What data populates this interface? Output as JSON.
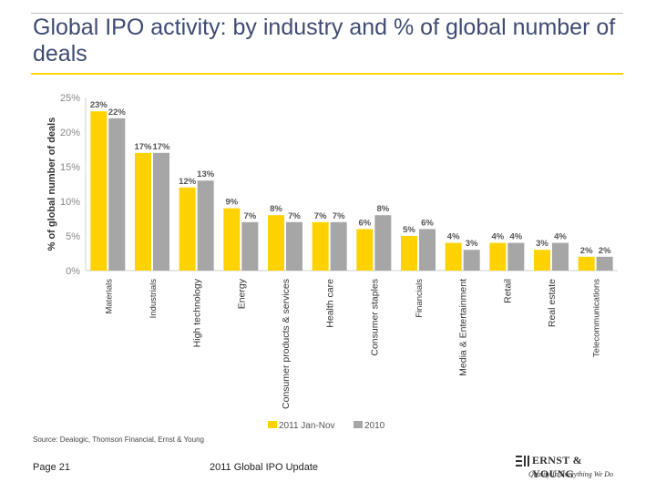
{
  "title": "Global IPO activity: by industry and % of global number of deals",
  "source": "Source: Dealogic, Thomson Financial, Ernst & Young",
  "footer": {
    "page": "Page 21",
    "center": "2011 Global IPO Update"
  },
  "logo": {
    "brand": "ERNST & YOUNG",
    "tagline": "Quality In Everything We Do"
  },
  "colors": {
    "series_2011": "#ffd200",
    "series_2010": "#a6a6a6",
    "title": "#404b73",
    "rule": "#ffd200"
  },
  "chart_data": {
    "type": "bar",
    "categories": [
      "Materials",
      "Industrials",
      "High technology",
      "Energy",
      "Consumer products & services",
      "Health care",
      "Consumer staples",
      "Financials",
      "Media & Entertainment",
      "Retail",
      "Real estate",
      "Telecommunications"
    ],
    "bold_categories": [
      "High technology",
      "Energy",
      "Consumer products & services",
      "Health care",
      "Consumer staples",
      "Media & Entertainment",
      "Retail",
      "Real estate"
    ],
    "series": [
      {
        "name": "2011 Jan-Nov",
        "values": [
          23,
          17,
          12,
          9,
          8,
          7,
          6,
          5,
          4,
          4,
          3,
          2
        ],
        "labels": [
          "23%",
          "17%",
          "12%",
          "9%",
          "8%",
          "7%",
          "6%",
          "5%",
          "4%",
          "4%",
          "3%",
          "2%"
        ]
      },
      {
        "name": "2010",
        "values": [
          22,
          17,
          13,
          7,
          7,
          7,
          8,
          6,
          3,
          4,
          4,
          2
        ],
        "labels": [
          "22%",
          "17%",
          "13%",
          "7%",
          "7%",
          "7%",
          "8%",
          "6%",
          "3%",
          "4%",
          "4%",
          "2%"
        ]
      }
    ],
    "ylabel": "% of global number of deals",
    "yticks": [
      "0%",
      "5%",
      "10%",
      "15%",
      "20%",
      "25%"
    ],
    "ylim": [
      0,
      25
    ],
    "grid": false,
    "legend_position": "bottom-right"
  }
}
